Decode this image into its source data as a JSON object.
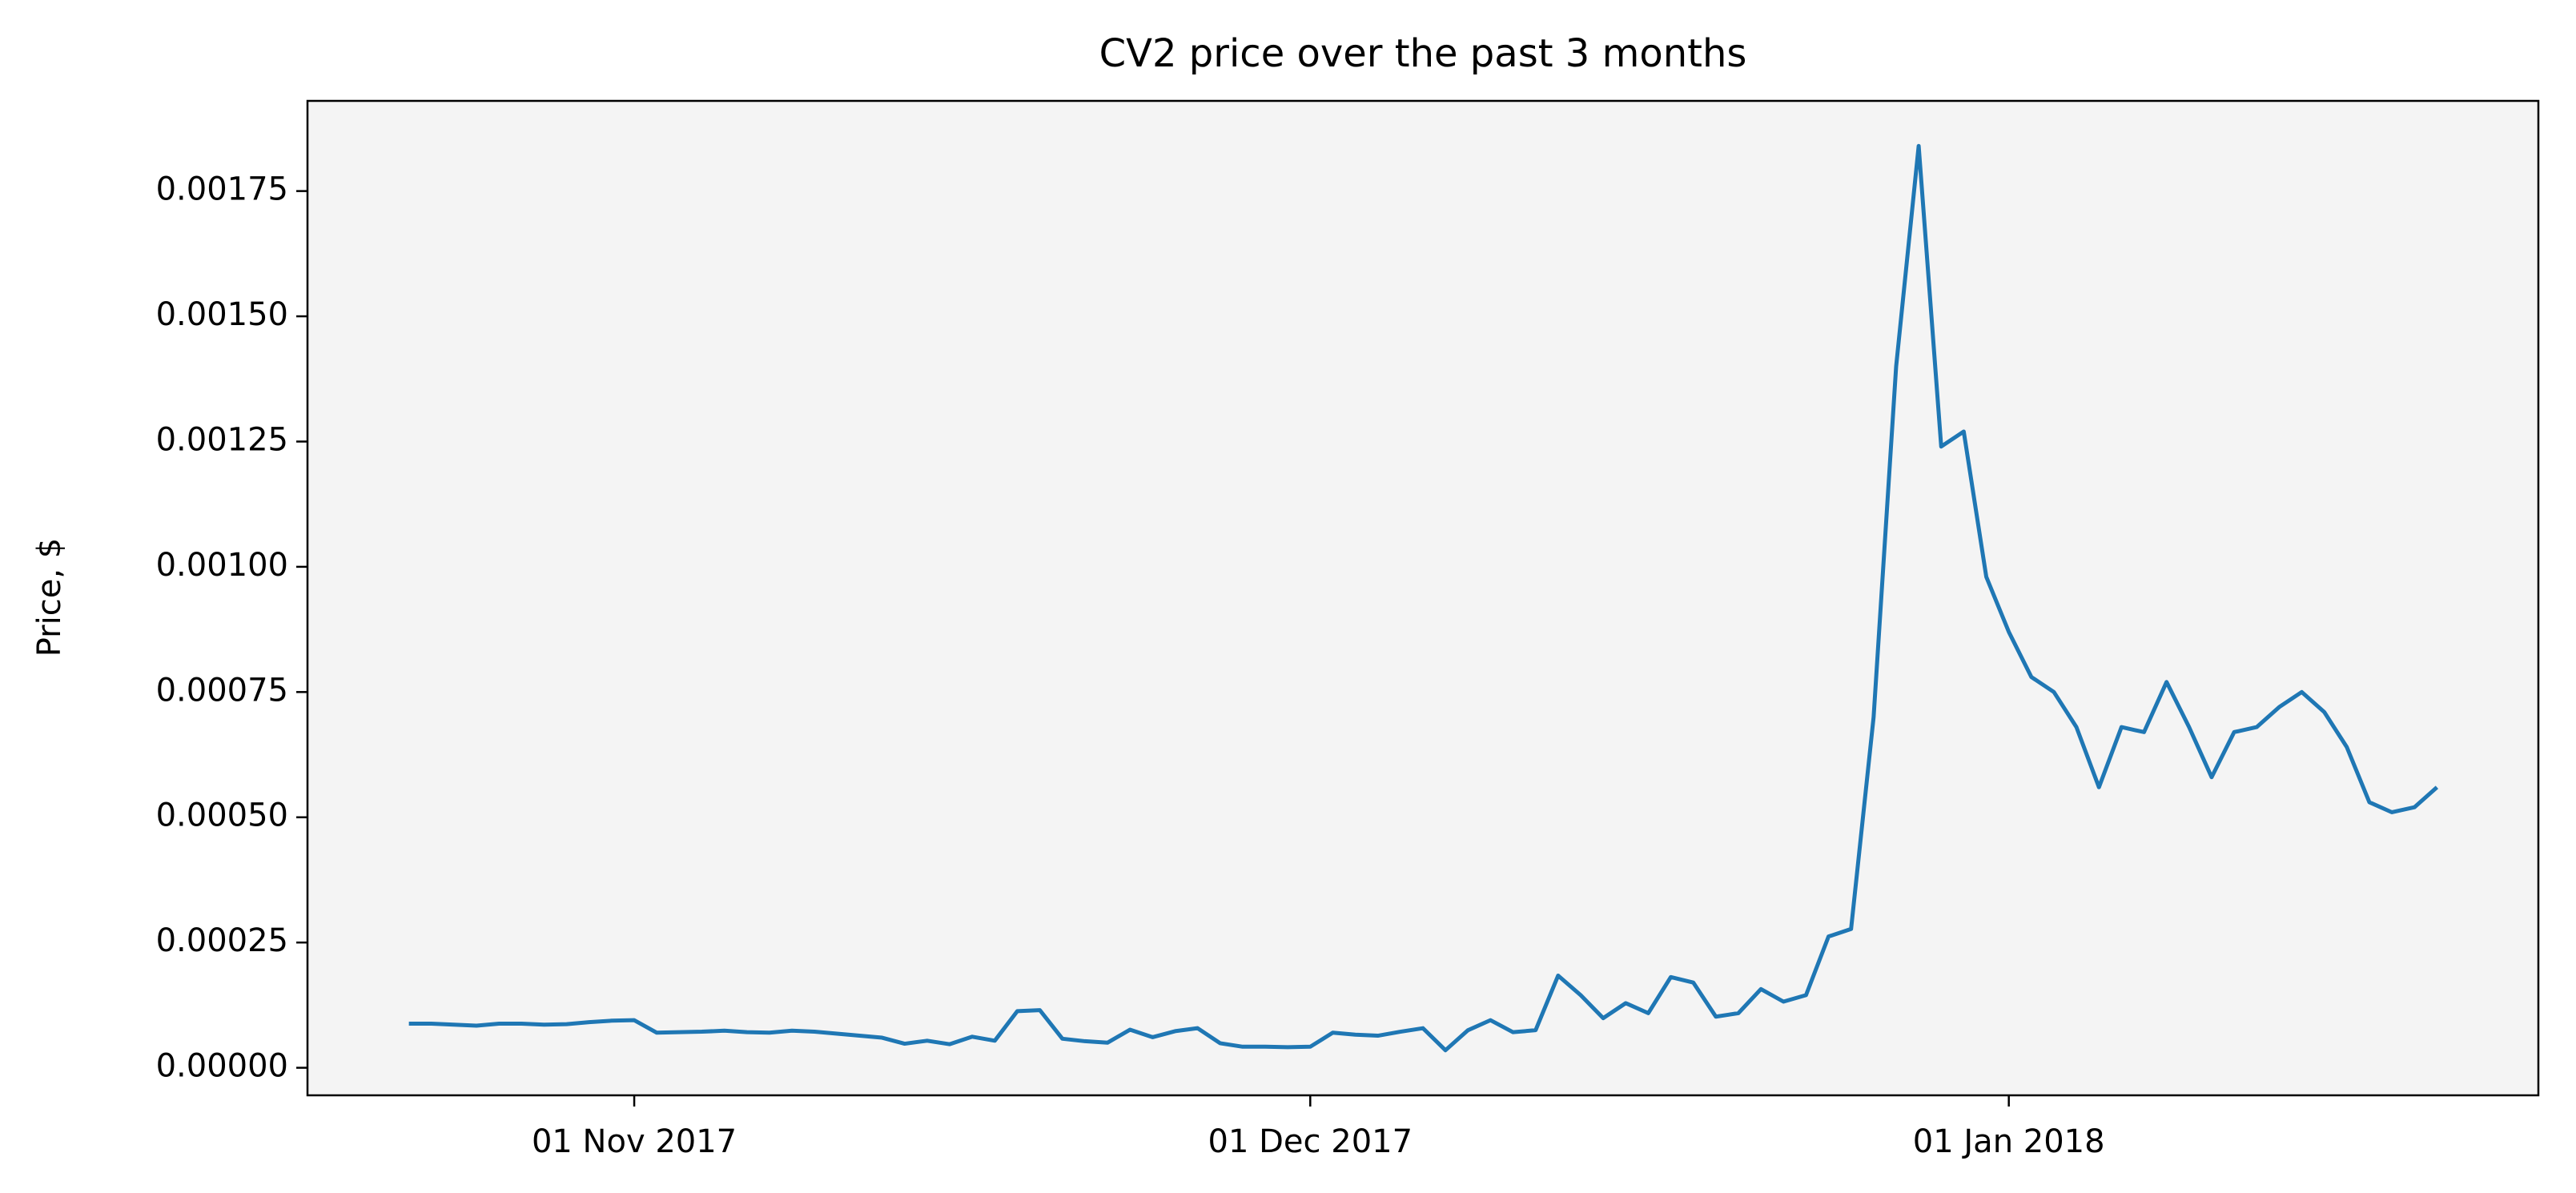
{
  "chart_data": {
    "type": "line",
    "title": "CV2 price over the past 3 months",
    "y_label": "Price, $",
    "x": [
      "2017-10-22",
      "2017-10-23",
      "2017-10-24",
      "2017-10-25",
      "2017-10-26",
      "2017-10-27",
      "2017-10-28",
      "2017-10-29",
      "2017-10-30",
      "2017-10-31",
      "2017-11-01",
      "2017-11-02",
      "2017-11-03",
      "2017-11-04",
      "2017-11-05",
      "2017-11-06",
      "2017-11-07",
      "2017-11-08",
      "2017-11-09",
      "2017-11-10",
      "2017-11-11",
      "2017-11-12",
      "2017-11-13",
      "2017-11-14",
      "2017-11-15",
      "2017-11-16",
      "2017-11-17",
      "2017-11-18",
      "2017-11-19",
      "2017-11-20",
      "2017-11-21",
      "2017-11-22",
      "2017-11-23",
      "2017-11-24",
      "2017-11-25",
      "2017-11-26",
      "2017-11-27",
      "2017-11-28",
      "2017-11-29",
      "2017-11-30",
      "2017-12-01",
      "2017-12-02",
      "2017-12-03",
      "2017-12-04",
      "2017-12-05",
      "2017-12-06",
      "2017-12-07",
      "2017-12-08",
      "2017-12-09",
      "2017-12-10",
      "2017-12-11",
      "2017-12-12",
      "2017-12-13",
      "2017-12-14",
      "2017-12-15",
      "2017-12-16",
      "2017-12-17",
      "2017-12-18",
      "2017-12-19",
      "2017-12-20",
      "2017-12-21",
      "2017-12-22",
      "2017-12-23",
      "2017-12-24",
      "2017-12-25",
      "2017-12-26",
      "2017-12-27",
      "2017-12-28",
      "2017-12-29",
      "2017-12-30",
      "2017-12-31",
      "2018-01-01",
      "2018-01-02",
      "2018-01-03",
      "2018-01-04",
      "2018-01-05",
      "2018-01-06",
      "2018-01-07",
      "2018-01-08",
      "2018-01-09",
      "2018-01-10",
      "2018-01-11",
      "2018-01-12",
      "2018-01-13",
      "2018-01-14",
      "2018-01-15",
      "2018-01-16",
      "2018-01-17",
      "2018-01-18",
      "2018-01-19",
      "2018-01-20"
    ],
    "series": [
      {
        "color": "#1f77b4",
        "values": [
          8.8e-05,
          8.8e-05,
          8.6e-05,
          8.4e-05,
          8.8e-05,
          8.8e-05,
          8.6e-05,
          8.7e-05,
          9.1e-05,
          9.4e-05,
          9.5e-05,
          7e-05,
          7.1e-05,
          7.2e-05,
          7.4e-05,
          7.1e-05,
          7e-05,
          7.4e-05,
          7.2e-05,
          6.8e-05,
          6.4e-05,
          6e-05,
          4.8e-05,
          5.4e-05,
          4.7e-05,
          6.2e-05,
          5.4e-05,
          0.000113,
          0.000115,
          5.8e-05,
          5.3e-05,
          5e-05,
          7.6e-05,
          6.1e-05,
          7.3e-05,
          7.9e-05,
          4.9e-05,
          4.2e-05,
          4.2e-05,
          4.1e-05,
          4.2e-05,
          7e-05,
          6.6e-05,
          6.4e-05,
          7.2e-05,
          7.9e-05,
          3.5e-05,
          7.5e-05,
          9.5e-05,
          7.1e-05,
          7.5e-05,
          0.000184,
          0.000145,
          9.9e-05,
          0.000129,
          0.000109,
          0.000181,
          0.00017,
          0.000102,
          0.000109,
          0.000157,
          0.000132,
          0.000145,
          0.000262,
          0.000277,
          0.0007,
          0.0014,
          0.00184,
          0.00124,
          0.00127,
          0.00098,
          0.00087,
          0.00078,
          0.00075,
          0.00068,
          0.00056,
          0.00068,
          0.00067,
          0.00077,
          0.00068,
          0.00058,
          0.00067,
          0.00068,
          0.00072,
          0.00075,
          0.00071,
          0.00064,
          0.00053,
          0.00051,
          0.00052,
          0.00056
        ]
      }
    ],
    "xlim": [
      "2017-10-17T12:00:00Z",
      "2018-01-24T12:00:00Z"
    ],
    "xticks": [
      {
        "value": "2017-11-01",
        "label": "01 Nov 2017"
      },
      {
        "value": "2017-12-01",
        "label": "01 Dec 2017"
      },
      {
        "value": "2018-01-01",
        "label": "01 Jan 2018"
      }
    ],
    "ylim": [
      -5.5e-05,
      0.00193
    ],
    "yticks": [
      {
        "value": 0,
        "label": "0.00000"
      },
      {
        "value": 0.00025,
        "label": "0.00025"
      },
      {
        "value": 0.0005,
        "label": "0.00050"
      },
      {
        "value": 0.00075,
        "label": "0.00075"
      },
      {
        "value": 0.001,
        "label": "0.00100"
      },
      {
        "value": 0.00125,
        "label": "0.00125"
      },
      {
        "value": 0.0015,
        "label": "0.00150"
      },
      {
        "value": 0.00175,
        "label": "0.00175"
      }
    ],
    "background": "#f4f4f4"
  }
}
